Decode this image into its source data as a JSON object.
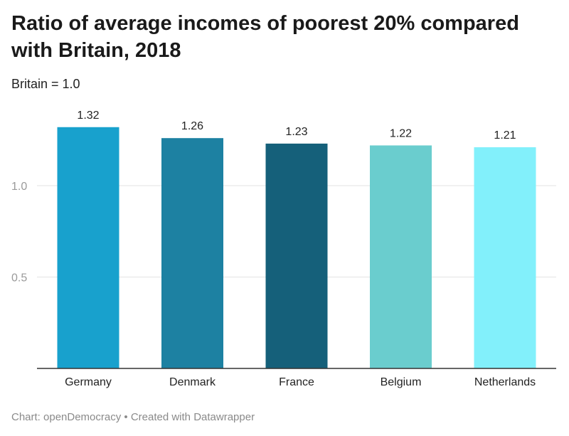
{
  "header": {
    "title": "Ratio of average incomes of poorest 20% compared with Britain, 2018",
    "subtitle": "Britain = 1.0"
  },
  "footer": {
    "credit": "Chart: openDemocracy • Created with Datawrapper"
  },
  "chart_data": {
    "type": "bar",
    "title": "Ratio of average incomes of poorest 20% compared with Britain, 2018",
    "subtitle": "Britain = 1.0",
    "categories": [
      "Germany",
      "Denmark",
      "France",
      "Belgium",
      "Netherlands"
    ],
    "values": [
      1.32,
      1.26,
      1.23,
      1.22,
      1.21
    ],
    "value_labels": [
      "1.32",
      "1.26",
      "1.23",
      "1.22",
      "1.21"
    ],
    "colors": [
      "#18a1cd",
      "#1d81a2",
      "#15607a",
      "#6acdce",
      "#82f0fb"
    ],
    "yticks": [
      0.5,
      1.0
    ],
    "ytick_labels": [
      "0.5",
      "1.0"
    ],
    "ylim": [
      0,
      1.4
    ],
    "grid": true,
    "gridline_color": "#e3e3e3",
    "baseline_color": "#333333",
    "xlabel": "",
    "ylabel": ""
  }
}
